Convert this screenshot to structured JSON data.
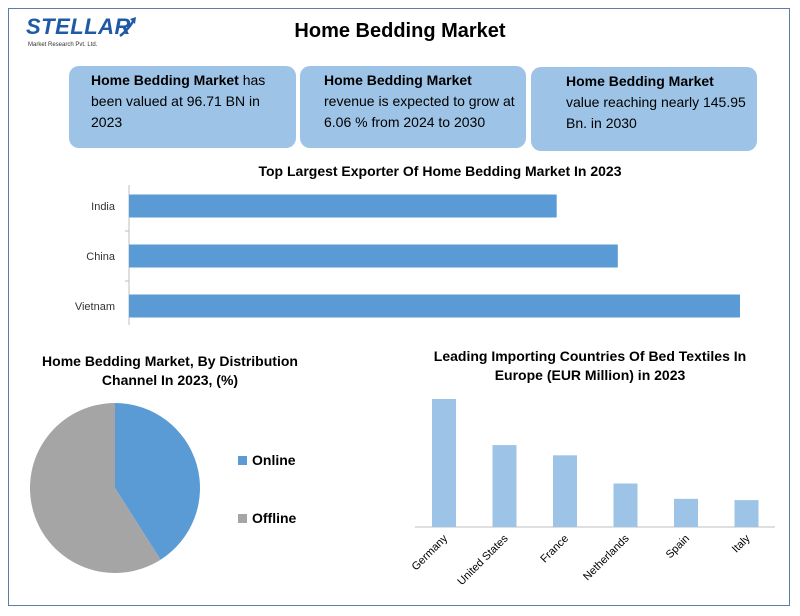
{
  "logo": {
    "brand": "STELLAR",
    "tagline": "Market Research Pvt. Ltd."
  },
  "title": "Home Bedding Market",
  "cards": [
    {
      "bold": "Home Bedding Market",
      "text": " has been valued at 96.71 BN in 2023"
    },
    {
      "bold": "Home Bedding Market",
      "text": "revenue is expected to grow at 6.06 % from 2024 to 2030"
    },
    {
      "bold": "Home Bedding Market",
      "text": "value reaching nearly 145.95 Bn. in 2030"
    }
  ],
  "colors": {
    "bar": "#5b9bd5",
    "bar_light": "#9dc3e6",
    "pie_gray": "#a5a5a5",
    "card": "#9dc3e6"
  },
  "chart_data": [
    {
      "type": "bar",
      "orientation": "horizontal",
      "title": "Top Largest Exporter Of Home Bedding Market In 2023",
      "categories": [
        "India",
        "China",
        "Vietnam"
      ],
      "values": [
        70,
        80,
        100
      ],
      "grid": false
    },
    {
      "type": "pie",
      "title": "Home Bedding Market, By Distribution Channel In 2023, (%)",
      "labels": [
        "Online",
        "Offline"
      ],
      "values": [
        41,
        59
      ],
      "colors": [
        "#5b9bd5",
        "#a5a5a5"
      ],
      "legend": "right"
    },
    {
      "type": "bar",
      "title": "Leading Importing Countries Of Bed Textiles In Europe (EUR Million) in 2023",
      "categories": [
        "Germany",
        "United States",
        "France",
        "Netherlands",
        "Spain",
        "Italy"
      ],
      "values": [
        100,
        64,
        56,
        34,
        22,
        21
      ],
      "ylim": [
        0,
        100
      ],
      "grid": false
    }
  ]
}
